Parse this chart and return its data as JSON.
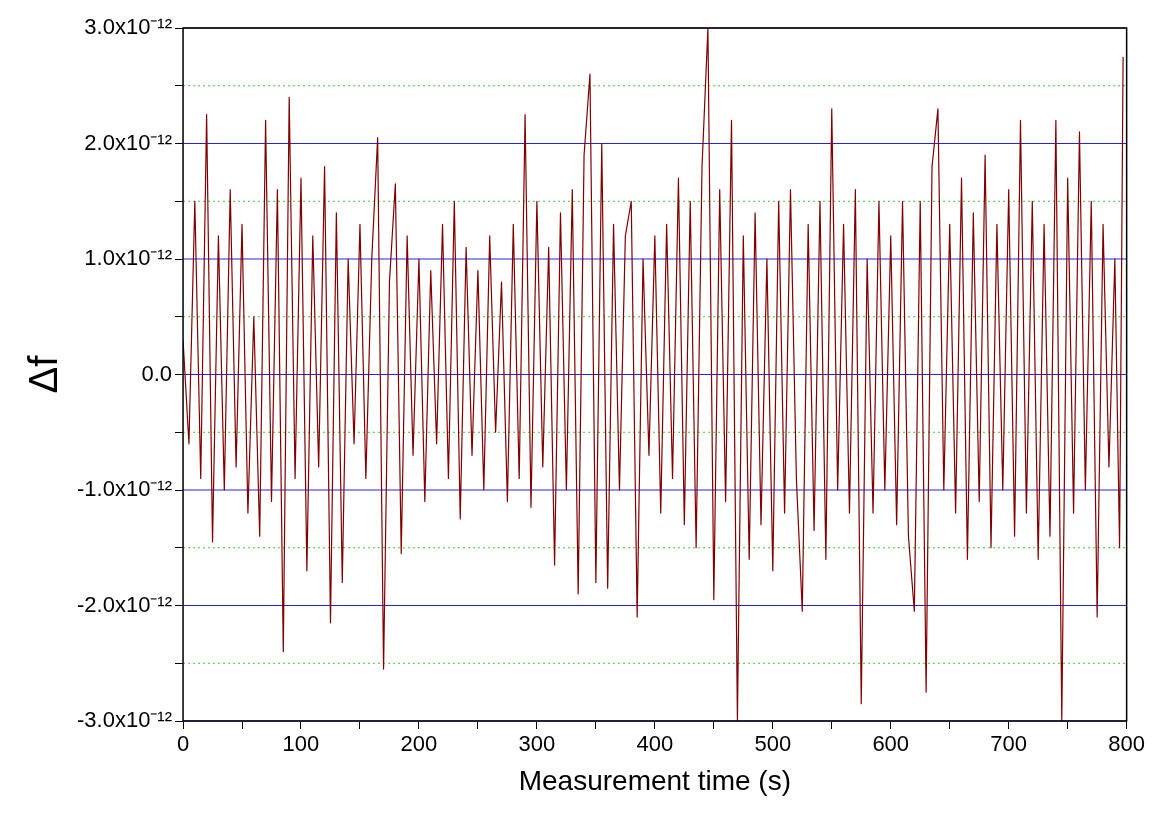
{
  "chart_data": {
    "type": "line",
    "xlabel": "Measurement time (s)",
    "ylabel": "Δf",
    "x": [
      0,
      5,
      10,
      15,
      20,
      25,
      30,
      35,
      40,
      45,
      50,
      55,
      60,
      65,
      70,
      75,
      80,
      85,
      90,
      95,
      100,
      105,
      110,
      115,
      120,
      125,
      130,
      135,
      140,
      145,
      150,
      155,
      160,
      165,
      170,
      175,
      180,
      185,
      190,
      195,
      200,
      205,
      210,
      215,
      220,
      225,
      230,
      235,
      240,
      245,
      250,
      255,
      260,
      265,
      270,
      275,
      280,
      285,
      290,
      295,
      300,
      305,
      310,
      315,
      320,
      325,
      330,
      335,
      340,
      345,
      350,
      355,
      360,
      365,
      370,
      375,
      380,
      385,
      390,
      395,
      400,
      405,
      410,
      415,
      420,
      425,
      430,
      435,
      440,
      445,
      450,
      455,
      460,
      465,
      470,
      475,
      480,
      485,
      490,
      495,
      500,
      505,
      510,
      515,
      520,
      525,
      530,
      535,
      540,
      545,
      550,
      555,
      560,
      565,
      570,
      575,
      580,
      585,
      590,
      595,
      600,
      605,
      610,
      615,
      620,
      625,
      630,
      635,
      640,
      645,
      650,
      655,
      660,
      665,
      670,
      675,
      680,
      685,
      690,
      695,
      700,
      705,
      710,
      715,
      720,
      725,
      730,
      735,
      740,
      745,
      750,
      755,
      760,
      765,
      770,
      775,
      780,
      785,
      790,
      794,
      797
    ],
    "series": [
      {
        "color": "#800000",
        "values": [
          3e-13,
          -6e-13,
          1.5e-12,
          -9e-13,
          2.25e-12,
          -1.45e-12,
          1.2e-12,
          -1e-12,
          1.6e-12,
          -8e-13,
          1.3e-12,
          -1.2e-12,
          5e-13,
          -1.4e-12,
          2.2e-12,
          -1.1e-12,
          1.6e-12,
          -2.4e-12,
          2.4e-12,
          -9e-13,
          1.7e-12,
          -1.7e-12,
          1.2e-12,
          -8e-13,
          1.8e-12,
          -2.15e-12,
          1.4e-12,
          -1.8e-12,
          1e-12,
          -6e-13,
          1.3e-12,
          -9e-13,
          1e-12,
          2.05e-12,
          -2.55e-12,
          8e-13,
          1.65e-12,
          -1.55e-12,
          1.2e-12,
          -7e-13,
          1e-12,
          -1.1e-12,
          9e-13,
          -6e-13,
          1.3e-12,
          -9e-13,
          1.5e-12,
          -1.25e-12,
          1.1e-12,
          -7e-13,
          9e-13,
          -1e-12,
          1.2e-12,
          -5e-13,
          8e-13,
          -1.1e-12,
          1.3e-12,
          -9e-13,
          2.25e-12,
          -1.15e-12,
          1.5e-12,
          -8e-13,
          1.1e-12,
          -1.65e-12,
          1.4e-12,
          -1e-12,
          1.6e-12,
          -1.9e-12,
          1.9e-12,
          2.6e-12,
          -1.8e-12,
          2e-12,
          -1.85e-12,
          1.3e-12,
          -1e-12,
          1.2e-12,
          1.5e-12,
          -2.1e-12,
          1e-12,
          -7e-13,
          1.2e-12,
          -1.2e-12,
          1.3e-12,
          -9e-13,
          1.7e-12,
          -1.3e-12,
          1.5e-12,
          -1.5e-12,
          1.8e-12,
          3e-12,
          -1.95e-12,
          1.6e-12,
          -1.1e-12,
          2.2e-12,
          -3e-12,
          1.2e-12,
          -1.6e-12,
          1.4e-12,
          -1.3e-12,
          1e-12,
          -1.7e-12,
          1.5e-12,
          -1.2e-12,
          1.6e-12,
          -9e-13,
          -2.05e-12,
          1.3e-12,
          -1.35e-12,
          1.5e-12,
          -1.6e-12,
          2.3e-12,
          -1e-12,
          1.3e-12,
          -1.2e-12,
          1.6e-12,
          -2.85e-12,
          1e-12,
          -1.2e-12,
          1.5e-12,
          -1e-12,
          1.2e-12,
          -1.3e-12,
          1.5e-12,
          -1.4e-12,
          -2.05e-12,
          1.5e-12,
          -2.75e-12,
          1.8e-12,
          2.3e-12,
          -1e-12,
          1.3e-12,
          -1.2e-12,
          1.7e-12,
          -1.6e-12,
          1.4e-12,
          -1.1e-12,
          1.9e-12,
          -1.5e-12,
          1.3e-12,
          -1e-12,
          1.6e-12,
          -1.4e-12,
          2.2e-12,
          -1.2e-12,
          1.5e-12,
          -1.6e-12,
          1.3e-12,
          -1.4e-12,
          2.2e-12,
          -3e-12,
          1.7e-12,
          -1.2e-12,
          2.1e-12,
          -1e-12,
          1.5e-12,
          -2.1e-12,
          1.3e-12,
          -8e-13,
          1e-12,
          -1.5e-12,
          2.75e-12
        ]
      }
    ],
    "xlim": [
      0,
      800
    ],
    "xticks": [
      0,
      {
        "value": 50,
        "label": null
      },
      100,
      {
        "value": 150,
        "label": null
      },
      200,
      {
        "value": 250,
        "label": null
      },
      300,
      {
        "value": 350,
        "label": null
      },
      400,
      {
        "value": 450,
        "label": null
      },
      500,
      {
        "value": 550,
        "label": null
      },
      600,
      {
        "value": 650,
        "label": null
      },
      700,
      {
        "value": 750,
        "label": null
      },
      800
    ],
    "ylim": [
      -3e-12,
      3e-12
    ],
    "yticks": [
      {
        "value": -3e-12,
        "label": "-3.0x10⁻¹²"
      },
      {
        "value": -2.5e-12,
        "label": null
      },
      {
        "value": -2e-12,
        "label": "-2.0x10⁻¹²"
      },
      {
        "value": -1.5e-12,
        "label": null
      },
      {
        "value": -1e-12,
        "label": "-1.0x10⁻¹²"
      },
      {
        "value": -5e-13,
        "label": null
      },
      {
        "value": 0,
        "label": "0.0"
      },
      {
        "value": 5e-13,
        "label": null
      },
      {
        "value": 1e-12,
        "label": "1.0x10⁻¹²"
      },
      {
        "value": 1.5e-12,
        "label": null
      },
      {
        "value": 2e-12,
        "label": "2.0x10⁻¹²"
      },
      {
        "value": 2.5e-12,
        "label": null
      },
      {
        "value": 3e-12,
        "label": "3.0x10⁻¹²"
      }
    ],
    "grid": "y",
    "legend": false,
    "marker": "none",
    "line_style": "solid"
  }
}
